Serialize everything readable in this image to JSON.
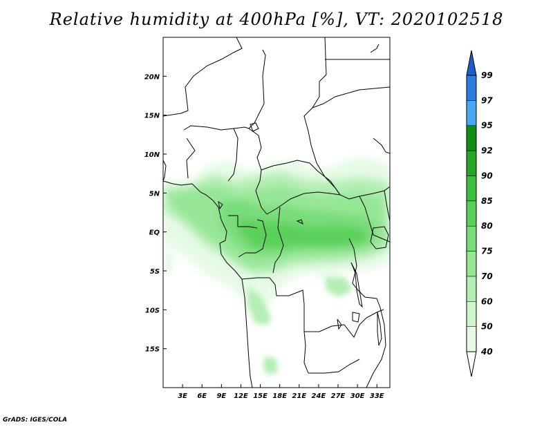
{
  "title": "Relative humidity at 400hPa [%], VT: 2020102518",
  "credit": "GrADS: IGES/COLA",
  "map": {
    "projection": "lat-lon",
    "lon_range": [
      0,
      35
    ],
    "lat_range": [
      -20,
      25
    ],
    "lon_ticks": [
      "3E",
      "6E",
      "9E",
      "12E",
      "15E",
      "18E",
      "21E",
      "24E",
      "27E",
      "30E",
      "33E"
    ],
    "lat_ticks": [
      "20N",
      "15N",
      "10N",
      "5N",
      "EQ",
      "5S",
      "10S",
      "15S"
    ]
  },
  "colorbar": {
    "levels": [
      "40",
      "50",
      "60",
      "70",
      "75",
      "80",
      "85",
      "90",
      "92",
      "95",
      "97",
      "99"
    ],
    "colors": [
      "#ffffff",
      "#e6fae6",
      "#cff5cf",
      "#b4eeb4",
      "#96e696",
      "#78dc78",
      "#5ad05a",
      "#3cc03c",
      "#24a824",
      "#128c12",
      "#4aa8f0",
      "#2a7ee0",
      "#1c5ec8"
    ]
  }
}
